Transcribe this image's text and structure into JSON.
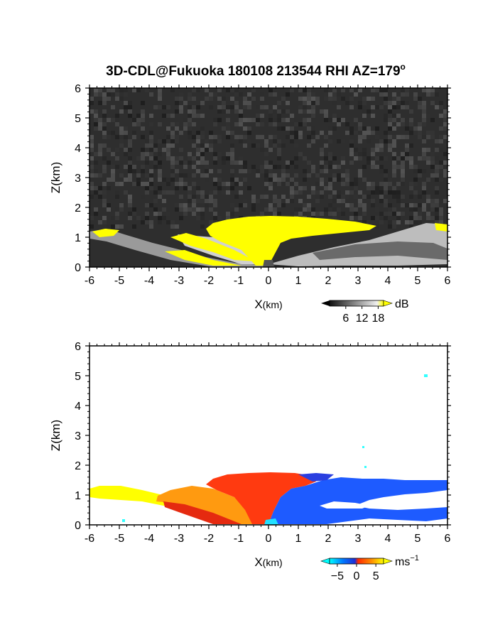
{
  "title": "3D-CDL@Fukuoka 180108 213544 RHI AZ=179",
  "title_suffix": "o",
  "chart_data": [
    {
      "type": "heatmap",
      "quantity": "backscatter intensity",
      "xlabel_main": "X",
      "xlabel_unit": "(km)",
      "ylabel": "Z(km)",
      "xlim": [
        -6,
        6
      ],
      "ylim": [
        0,
        6
      ],
      "xticks": [
        "-6",
        "-5",
        "-4",
        "-3",
        "-2",
        "-1",
        "0",
        "1",
        "2",
        "3",
        "4",
        "5",
        "6"
      ],
      "yticks": [
        "0",
        "1",
        "2",
        "3",
        "4",
        "5",
        "6"
      ],
      "colorbar": {
        "unit": "dB",
        "ticks": [
          6,
          12,
          18
        ],
        "range": [
          0,
          20
        ],
        "saturation_color": "#ffff00",
        "background_color": "#2a2a2a"
      }
    },
    {
      "type": "heatmap",
      "quantity": "radial velocity",
      "xlabel_main": "X",
      "xlabel_unit": "(km)",
      "ylabel": "Z(km)",
      "xlim": [
        -6,
        6
      ],
      "ylim": [
        0,
        6
      ],
      "xticks": [
        "-6",
        "-5",
        "-4",
        "-3",
        "-2",
        "-1",
        "0",
        "1",
        "2",
        "3",
        "4",
        "5",
        "6"
      ],
      "yticks": [
        "0",
        "1",
        "2",
        "3",
        "4",
        "5",
        "6"
      ],
      "colorbar": {
        "unit": "ms",
        "unit_exp": "−1",
        "ticks": [
          -5,
          0,
          5
        ],
        "tick_labels": [
          "−5",
          "0",
          "5"
        ],
        "range": [
          -7,
          7
        ],
        "colors": [
          "#00ffff",
          "#0066ff",
          "#1e2fd6",
          "#ff2a00",
          "#ff8c00",
          "#ffff00"
        ]
      }
    }
  ]
}
